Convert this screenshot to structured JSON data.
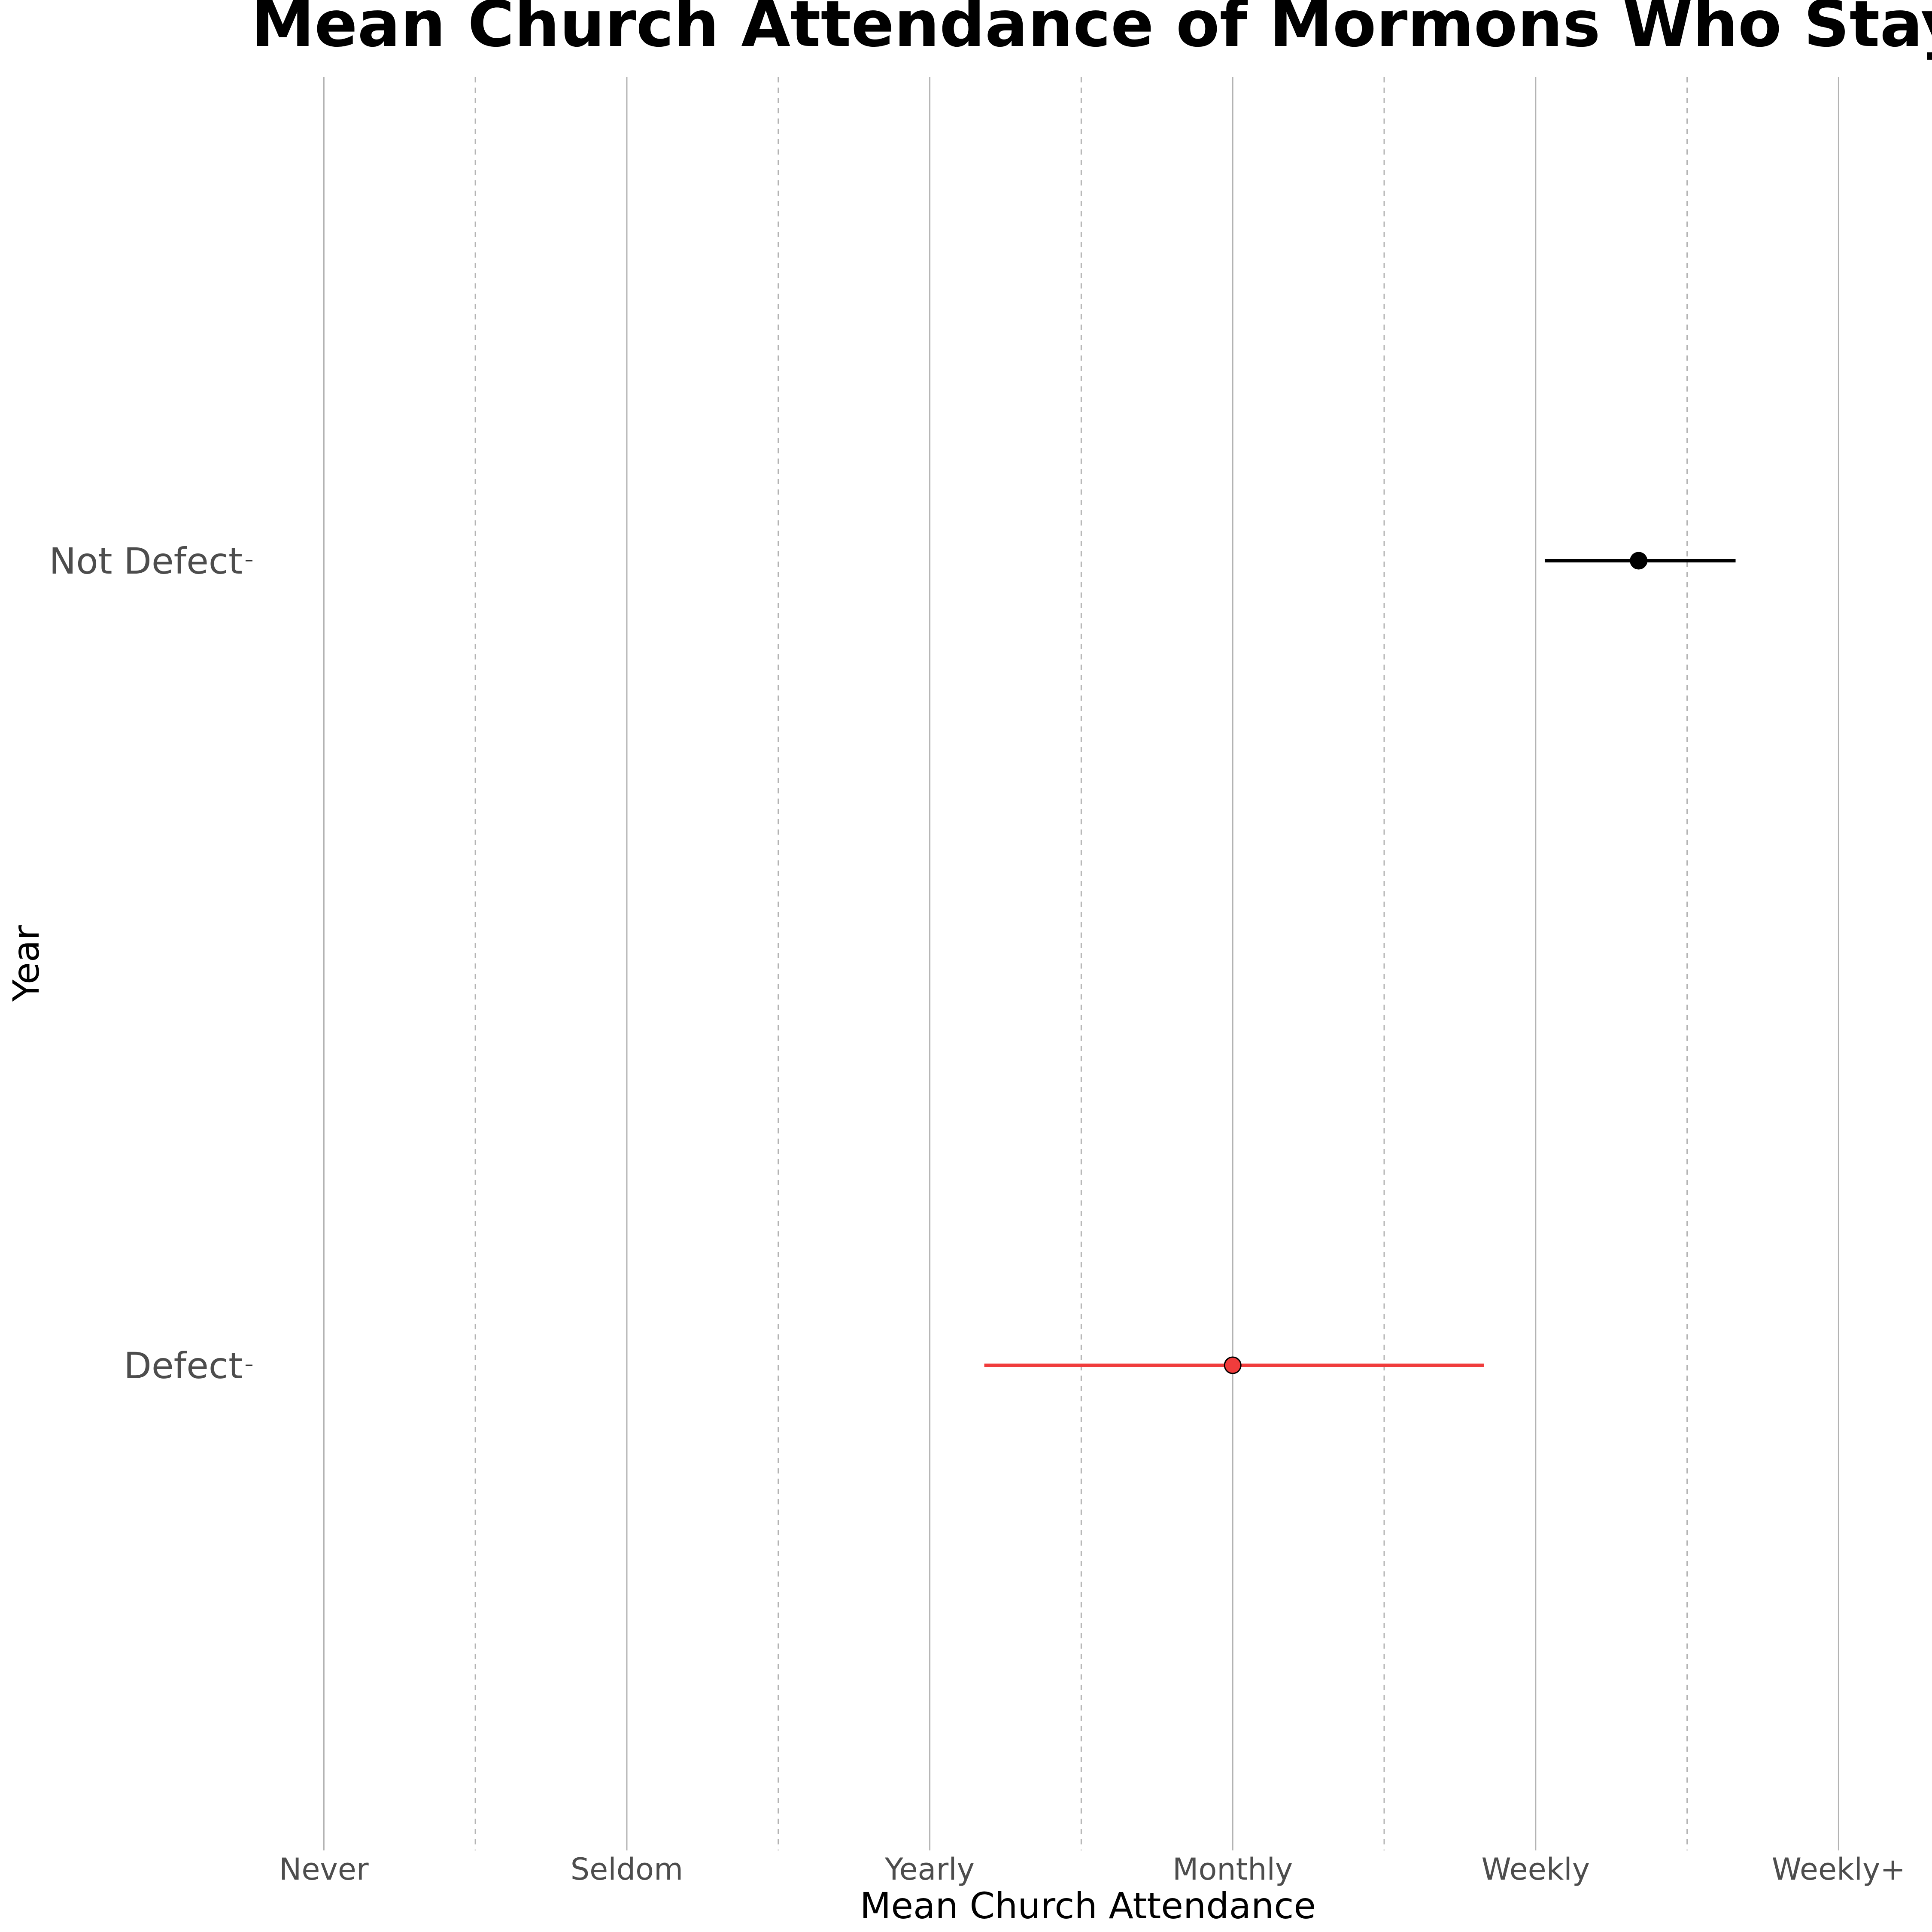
{
  "chart_data": {
    "type": "scatter",
    "title": "Mean Church Attendance of Mormons Who Stay an",
    "xlabel": "Mean Church Attendance",
    "ylabel": "Year",
    "x_ticks": [
      {
        "value": 1,
        "label": "Never"
      },
      {
        "value": 2,
        "label": "Seldom"
      },
      {
        "value": 3,
        "label": "Yearly"
      },
      {
        "value": 4,
        "label": "Monthly"
      },
      {
        "value": 5,
        "label": "Weekly"
      },
      {
        "value": 6,
        "label": "Weekly+"
      }
    ],
    "xlim": [
      0.76,
      6.28
    ],
    "y_categories": [
      "Not Defect",
      "Defect"
    ],
    "grid": true,
    "legend": "none",
    "series": [
      {
        "category": "Not Defect",
        "mean": 5.34,
        "lower": 5.03,
        "upper": 5.66,
        "color": "#000000"
      },
      {
        "category": "Defect",
        "mean": 4.0,
        "lower": 3.18,
        "upper": 4.83,
        "color": "#f03c3c"
      }
    ]
  }
}
